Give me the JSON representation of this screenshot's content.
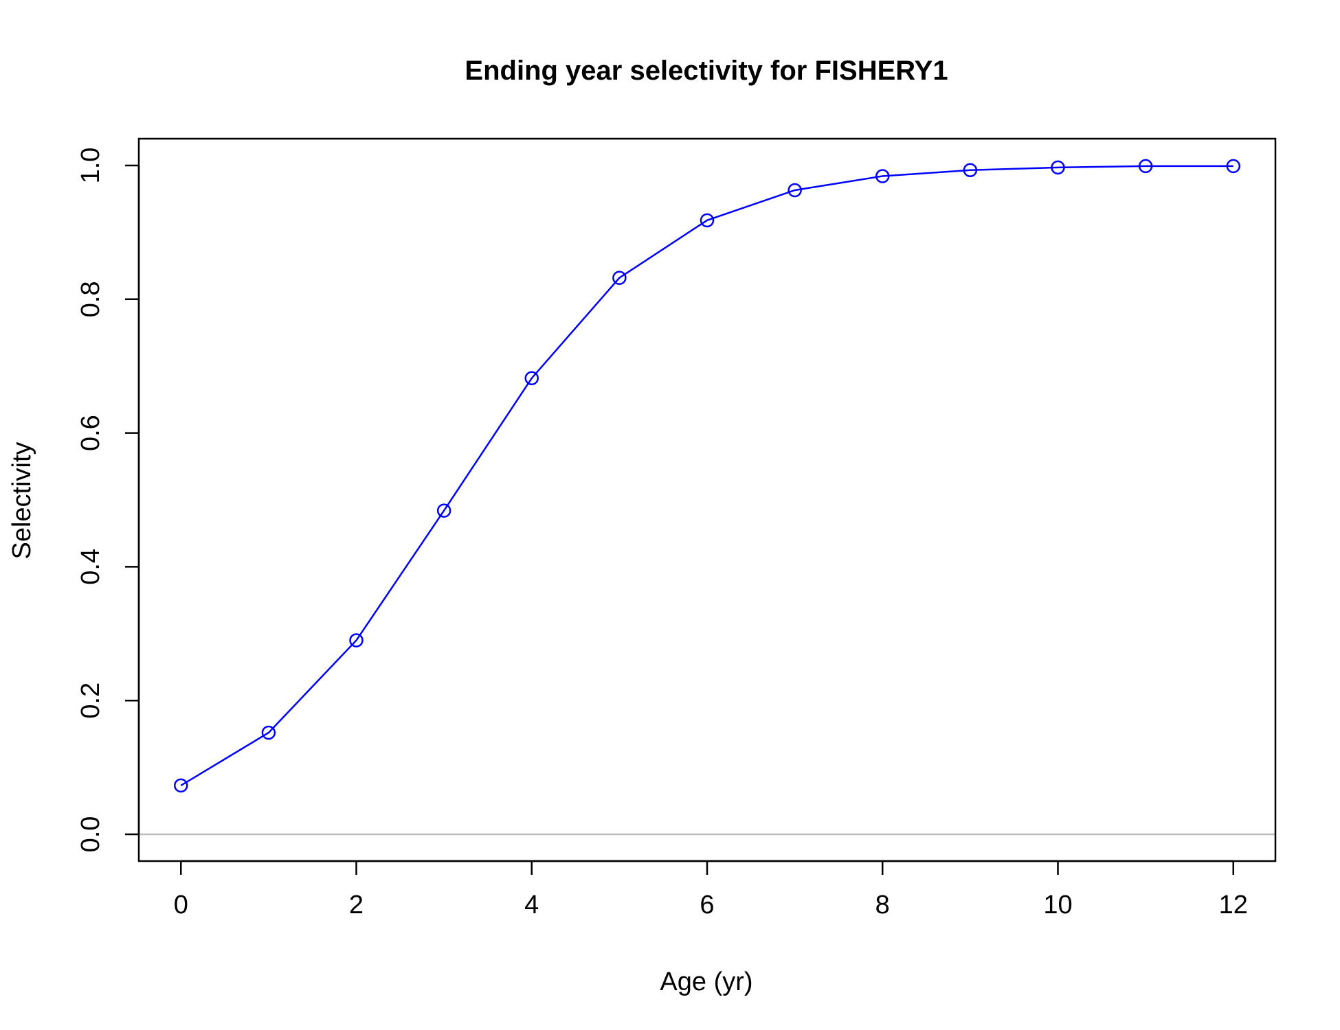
{
  "chart_data": {
    "type": "line",
    "title": "Ending year selectivity for FISHERY1",
    "xlabel": "Age (yr)",
    "ylabel": "Selectivity",
    "xlim": [
      -0.48,
      12.48
    ],
    "ylim": [
      -0.04,
      1.04
    ],
    "x_ticks": [
      0,
      2,
      4,
      6,
      8,
      10,
      12
    ],
    "y_ticks": [
      0.0,
      0.2,
      0.4,
      0.6,
      0.8,
      1.0
    ],
    "x_tick_labels": [
      "0",
      "2",
      "4",
      "6",
      "8",
      "10",
      "12"
    ],
    "y_tick_labels": [
      "0.0",
      "0.2",
      "0.4",
      "0.6",
      "0.8",
      "1.0"
    ],
    "series": [
      {
        "x": [
          0,
          1,
          2,
          3,
          4,
          5,
          6,
          7,
          8,
          9,
          10,
          11,
          12
        ],
        "values": [
          0.073,
          0.152,
          0.29,
          0.484,
          0.682,
          0.832,
          0.918,
          0.963,
          0.984,
          0.993,
          0.997,
          0.999,
          0.999
        ],
        "color": "#0000ff",
        "marker": "open-circle"
      }
    ],
    "reference_line": {
      "y": 0,
      "color": "#bebebe"
    },
    "grid": false
  }
}
